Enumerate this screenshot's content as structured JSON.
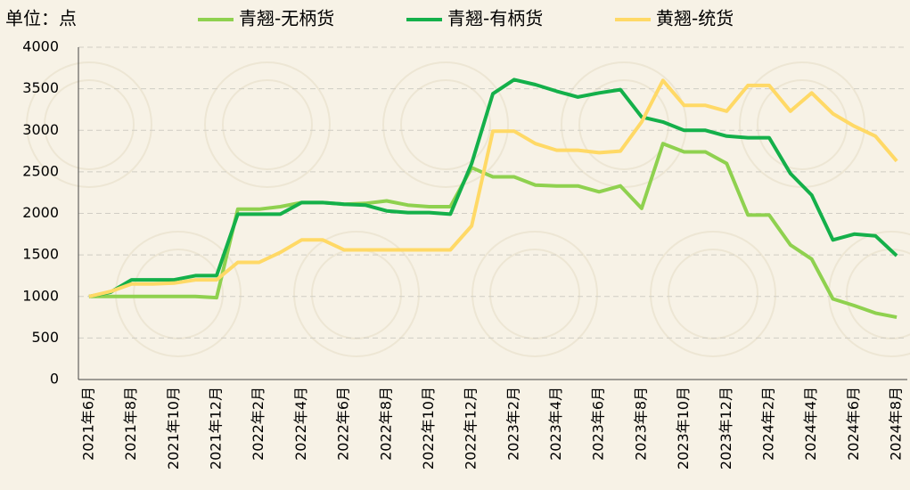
{
  "chart_data": {
    "type": "line",
    "unit_label": "单位：点",
    "categories": [
      "2021年6月",
      null,
      "2021年8月",
      null,
      "2021年10月",
      null,
      "2021年12月",
      null,
      "2022年2月",
      null,
      "2022年4月",
      null,
      "2022年6月",
      null,
      "2022年8月",
      null,
      "2022年10月",
      null,
      "2022年12月",
      null,
      "2023年2月",
      null,
      "2023年4月",
      null,
      "2023年6月",
      null,
      "2023年8月",
      null,
      "2023年10月",
      null,
      "2023年12月",
      null,
      "2024年2月",
      null,
      "2024年4月",
      null,
      "2024年6月",
      null,
      "2024年8月"
    ],
    "series": [
      {
        "name": "青翘-无柄货",
        "color": "#8fd14f",
        "values": [
          1000,
          1000,
          1000,
          1000,
          1000,
          1000,
          985,
          2050,
          2050,
          2080,
          2130,
          2130,
          2110,
          2120,
          2150,
          2100,
          2080,
          2080,
          2550,
          2440,
          2440,
          2340,
          2330,
          2330,
          2260,
          2330,
          2060,
          2840,
          2740,
          2740,
          2600,
          1980,
          1980,
          1620,
          1450,
          970,
          890,
          800,
          750
        ]
      },
      {
        "name": "青翘-有柄货",
        "color": "#14b04a",
        "values": [
          1000,
          1050,
          1200,
          1200,
          1200,
          1250,
          1250,
          1990,
          1990,
          1990,
          2130,
          2130,
          2110,
          2100,
          2030,
          2010,
          2010,
          1990,
          2600,
          3440,
          3610,
          3550,
          3470,
          3400,
          3450,
          3490,
          3160,
          3100,
          3000,
          3000,
          2930,
          2910,
          2910,
          2480,
          2220,
          1680,
          1750,
          1730,
          1490
        ]
      },
      {
        "name": "黄翘-统货",
        "color": "#ffd966",
        "values": [
          1000,
          1060,
          1150,
          1150,
          1160,
          1200,
          1200,
          1410,
          1410,
          1530,
          1680,
          1680,
          1560,
          1560,
          1560,
          1560,
          1560,
          1560,
          1850,
          2990,
          2990,
          2840,
          2760,
          2760,
          2730,
          2750,
          3100,
          3600,
          3300,
          3300,
          3230,
          3540,
          3540,
          3230,
          3450,
          3200,
          3050,
          2930,
          2630
        ]
      }
    ],
    "ylim": [
      0,
      4000
    ],
    "yticks": [
      0,
      500,
      1000,
      1500,
      2000,
      2500,
      3000,
      3500,
      4000
    ],
    "grid": true
  }
}
